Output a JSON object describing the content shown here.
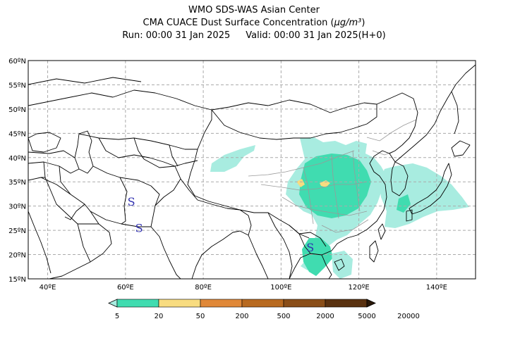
{
  "header": {
    "line1": "WMO SDS-WAS Asian Center",
    "line2_prefix": "CMA CUACE Dust Surface Concentration (",
    "line2_unit": "μg/m³",
    "line2_suffix": ")",
    "line3_run": "Run: 00:00 31 Jan 2025",
    "line3_valid": "Valid: 00:00 31 Jan 2025(H+0)"
  },
  "map": {
    "lat_labels": [
      "60ºN",
      "55ºN",
      "50ºN",
      "45ºN",
      "40ºN",
      "35ºN",
      "30ºN",
      "25ºN",
      "20ºN",
      "15ºN"
    ],
    "lon_labels": [
      "40ºE",
      "60ºE",
      "80ºE",
      "100ºE",
      "120ºE",
      "140ºE"
    ],
    "lat_values": [
      60,
      55,
      50,
      45,
      40,
      35,
      30,
      25,
      20,
      15
    ],
    "lon_values": [
      40,
      60,
      80,
      100,
      120,
      140
    ],
    "extent": {
      "lon_min": 35,
      "lon_max": 150,
      "lat_min": 15,
      "lat_max": 60
    },
    "storm_symbol": "S",
    "storm_markers": [
      {
        "lon": 61.5,
        "lat": 31.0
      },
      {
        "lon": 63.5,
        "lat": 25.5
      },
      {
        "lon": 107.5,
        "lat": 21.5
      }
    ],
    "colors": {
      "land_border": "#000000",
      "province_border": "#999999",
      "grid": "#aaaaaa",
      "storm_symbol": "#3030b0"
    }
  },
  "colorbar": {
    "labels": [
      "5",
      "20",
      "50",
      "200",
      "500",
      "2000",
      "5000",
      "20000"
    ],
    "colors": [
      "#a8ece0",
      "#40dcb0",
      "#f8dc80",
      "#e08838",
      "#b86a20",
      "#8a4e18",
      "#5a3210",
      "#2a1808"
    ]
  }
}
